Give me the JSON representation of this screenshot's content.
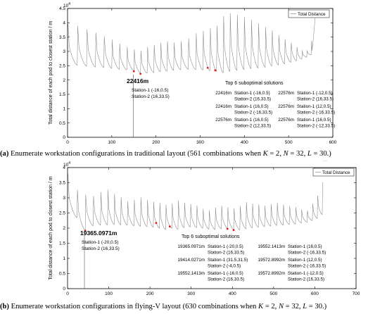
{
  "panels": [
    {
      "caption_letter": "(a)",
      "caption_text": " Enumerate workstation configurations in traditional layout (561 combinations when ",
      "caption_params": {
        "K": "2",
        "N": "32",
        "L": "30"
      },
      "legend_entry": "Total Distance",
      "ylabel": "Total distance of each pod to closest station / m",
      "y_exponent": "10^4",
      "highlight_label": "22416m",
      "highlight_stations": [
        "Station-1 (-16,0.5)",
        "Station-2 (16,33.5)"
      ],
      "top6_title": "Top 6 suboptimal solutions",
      "top6": [
        {
          "distance": "22416m",
          "station1": "Station-1 (-16,0.5)",
          "station2": "Station-2 (16,33.5)"
        },
        {
          "distance": "22416m",
          "station1": "Station-1 (16,0.5)",
          "station2": "Station-2 (-16,33.5)"
        },
        {
          "distance": "22576m",
          "station1": "Station-1 (16,0.5)",
          "station2": "Station-2 (12,33.5)"
        },
        {
          "distance": "22576m",
          "station1": "Station-1 (-12,0.5)",
          "station2": "Station-2 (16,33.5)"
        },
        {
          "distance": "22576m",
          "station1": "Station-1 (12,0.5)",
          "station2": "Station-2 (-16,33.5)"
        },
        {
          "distance": "22576m",
          "station1": "Station-1 (16,0.5)",
          "station2": "Station-2 (-12,33.5)"
        }
      ]
    },
    {
      "caption_letter": "(b)",
      "caption_text": " Enumerate workstation configurations in flying-V layout (630 combinations when ",
      "caption_params": {
        "K": "2",
        "N": "32",
        "L": "30"
      },
      "legend_entry": "Total Distance",
      "ylabel": "Total distance of each pod to closest station / m",
      "y_exponent": "10^4",
      "highlight_label": "19365.0971m",
      "highlight_stations": [
        "Station-1 (-20,0.5)",
        "Station-2 (16,33.5)"
      ],
      "top6_title": "Top 6 suboptimal solutions",
      "top6": [
        {
          "distance": "19365.0971m",
          "station1": "Station-1 (-20,0.5)",
          "station2": "Station-2 (16,33.5)"
        },
        {
          "distance": "19414.0271m",
          "station1": "Station-1 (31.5,31.5)",
          "station2": "Station-2 (-4,0.5)"
        },
        {
          "distance": "19552.1413m",
          "station1": "Station-1 (-16,0.5)",
          "station2": "Station-2 (16,33.5)"
        },
        {
          "distance": "19552.1413m",
          "station1": "Station-1 (16,0.5)",
          "station2": "Station-2 (-16,33.5)"
        },
        {
          "distance": "19572.8992m",
          "station1": "Station-1 (12,0.5)",
          "station2": "Station-2 (-16,33.5)"
        },
        {
          "distance": "19572.8992m",
          "station1": "Station-1 (-12,0.5)",
          "station2": "Station-2 (16,33.5)"
        }
      ]
    }
  ],
  "chart_data": [
    {
      "type": "line",
      "series": [
        {
          "name": "Total Distance",
          "color": "#888888"
        }
      ],
      "xlim": [
        0,
        600
      ],
      "ylim": [
        0,
        45000
      ],
      "x_ticks": [
        0,
        100,
        200,
        300,
        400,
        500,
        600
      ],
      "y_ticks": [
        0,
        5000,
        10000,
        15000,
        20000,
        25000,
        30000,
        35000,
        40000,
        45000
      ],
      "y_tick_labels": [
        "0",
        "0.5",
        "1",
        "1.5",
        "2",
        "2.5",
        "3",
        "3.5",
        "4",
        "4.5"
      ],
      "n_points": 561,
      "minimum": {
        "x": 149,
        "y": 22416
      },
      "marked_minima_x": [
        149,
        165,
        315,
        332
      ],
      "cycle_x": [
        0,
        22,
        43,
        63,
        82,
        100,
        117,
        134,
        150,
        165,
        180,
        195,
        210,
        225,
        240,
        256,
        273,
        290,
        306,
        322,
        337,
        352,
        367,
        383,
        399,
        415,
        431,
        447,
        462,
        477,
        491,
        505,
        518,
        530,
        541,
        551,
        561
      ],
      "cycle_peaks": [
        39500,
        38800,
        37700,
        36600,
        35200,
        34000,
        32700,
        31500,
        30600,
        30300,
        31500,
        32300,
        32900,
        33600,
        33000,
        33500,
        34600,
        36200,
        37100,
        38000,
        39000,
        42200,
        43300,
        42800,
        42000,
        41000,
        39800,
        38500,
        37200,
        35700,
        34300,
        33000,
        31400,
        30300,
        30400,
        33700
      ],
      "cycle_troughs": [
        25200,
        24900,
        24600,
        24400,
        24100,
        23800,
        23600,
        23300,
        22416,
        22416,
        22600,
        22900,
        23100,
        23400,
        23600,
        23800,
        23700,
        23500,
        23300,
        23000,
        22576,
        23000,
        23400,
        23700,
        24000,
        24200,
        24500,
        24900,
        25300,
        25700,
        26200,
        26700,
        27300,
        28000,
        28800,
        29600,
        44000
      ],
      "legend": "top-right"
    },
    {
      "type": "line",
      "series": [
        {
          "name": "Total Distance",
          "color": "#888888"
        }
      ],
      "xlim": [
        0,
        700
      ],
      "ylim": [
        0,
        40000
      ],
      "x_ticks": [
        0,
        100,
        200,
        300,
        400,
        500,
        600,
        700
      ],
      "y_ticks": [
        0,
        5000,
        10000,
        15000,
        20000,
        25000,
        30000,
        35000,
        40000
      ],
      "y_tick_labels": [
        "0",
        "0.5",
        "1",
        "1.5",
        "2",
        "2.5",
        "3",
        "3.5",
        "4"
      ],
      "n_points": 630,
      "minimum": {
        "x": 41,
        "y": 19365.0971
      },
      "marked_minima_x": [
        41,
        213,
        246,
        388,
        404
      ],
      "cycle_x": [
        0,
        23,
        43,
        62,
        80,
        97,
        113,
        129,
        145,
        161,
        177,
        193,
        208,
        223,
        238,
        253,
        268,
        283,
        298,
        313,
        328,
        343,
        358,
        373,
        388,
        403,
        418,
        433,
        448,
        463,
        478,
        493,
        508,
        523,
        538,
        553,
        567,
        581,
        594,
        606,
        618,
        630
      ],
      "cycle_peaks": [
        38000,
        32700,
        31000,
        30500,
        31800,
        32700,
        31300,
        30300,
        28900,
        29400,
        30200,
        29300,
        28600,
        28300,
        27600,
        28100,
        29000,
        28400,
        27900,
        27400,
        26300,
        25900,
        26700,
        27400,
        26800,
        26600,
        27200,
        28600,
        28000,
        27800,
        27300,
        28000,
        28300,
        27800,
        27200,
        26900,
        26200,
        25800,
        28000,
        30600,
        35000
      ],
      "cycle_troughs": [
        23500,
        19365,
        20800,
        21000,
        21100,
        21200,
        21100,
        21000,
        20800,
        20600,
        20500,
        20300,
        20000,
        19552,
        20000,
        19600,
        20200,
        20400,
        20200,
        20000,
        19700,
        19573,
        19800,
        20000,
        19573,
        19414,
        19800,
        20100,
        20300,
        20500,
        20700,
        20900,
        21000,
        21200,
        21400,
        21700,
        22000,
        22500,
        23200,
        24500,
        35000
      ],
      "legend": "top-right"
    }
  ]
}
